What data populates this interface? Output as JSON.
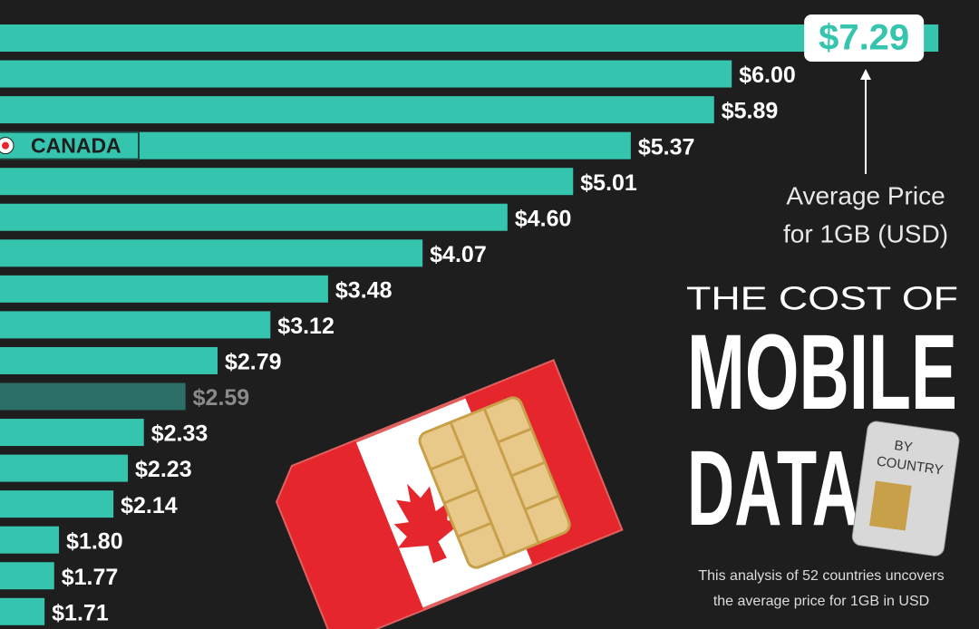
{
  "chart_data": {
    "type": "bar",
    "orientation": "horizontal",
    "title_lines": [
      "THE COST OF",
      "MOBILE",
      "DATA"
    ],
    "badge_lines": [
      "BY",
      "COUNTRY"
    ],
    "subtitle_lines": [
      "This analysis of 52 countries uncovers",
      "the average price for 1GB in USD"
    ],
    "annotation_lines": [
      "Average Price",
      "for 1GB (USD)"
    ],
    "categories": [
      null,
      null,
      null,
      "CANADA",
      null,
      null,
      null,
      null,
      null,
      null,
      null,
      null,
      null,
      null,
      null,
      null,
      null
    ],
    "values": [
      7.29,
      6.0,
      5.89,
      5.37,
      5.01,
      4.6,
      4.07,
      3.48,
      3.12,
      2.79,
      2.59,
      2.33,
      2.23,
      2.14,
      1.8,
      1.77,
      1.71
    ],
    "value_labels": [
      "$7.29",
      "$6.00",
      "$5.89",
      "$5.37",
      "$5.01",
      "$4.60",
      "$4.07",
      "$3.48",
      "$3.12",
      "$2.79",
      "$2.59",
      "$2.33",
      "$2.23",
      "$2.14",
      "$1.80",
      "$1.77",
      "$1.71"
    ],
    "colors": [
      "#35c4ae",
      "#35c4ae",
      "#35c4ae",
      "#35c4ae",
      "#35c4ae",
      "#35c4ae",
      "#35c4ae",
      "#35c4ae",
      "#35c4ae",
      "#35c4ae",
      "#2b6e65",
      "#35c4ae",
      "#35c4ae",
      "#35c4ae",
      "#35c4ae",
      "#35c4ae",
      "#35c4ae"
    ]
  }
}
